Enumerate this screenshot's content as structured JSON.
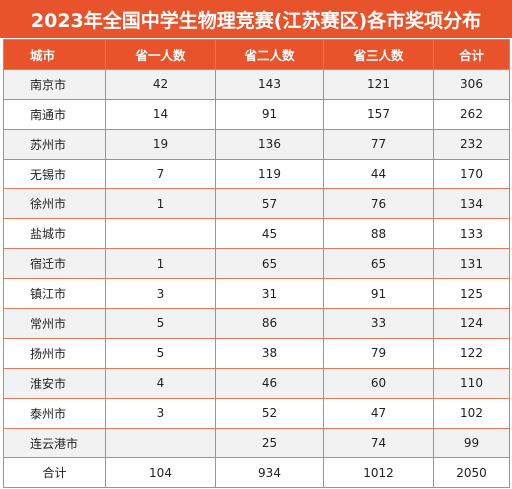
{
  "title": "2023年全国中学生物理竞赛(江苏赛区)各市奖项分布",
  "headers": [
    "城市",
    "省一人数",
    "省二人数",
    "省三人数",
    "合计"
  ],
  "rows": [
    [
      "南京市",
      "42",
      "143",
      "121",
      "306"
    ],
    [
      "南通市",
      "14",
      "91",
      "157",
      "262"
    ],
    [
      "苏州市",
      "19",
      "136",
      "77",
      "232"
    ],
    [
      "无锡市",
      "7",
      "119",
      "44",
      "170"
    ],
    [
      "徐州市",
      "1",
      "57",
      "76",
      "134"
    ],
    [
      "盐城市",
      "",
      "45",
      "88",
      "133"
    ],
    [
      "宿迁市",
      "1",
      "65",
      "65",
      "131"
    ],
    [
      "镇江市",
      "3",
      "31",
      "91",
      "125"
    ],
    [
      "常州市",
      "5",
      "86",
      "33",
      "124"
    ],
    [
      "扬州市",
      "5",
      "38",
      "79",
      "122"
    ],
    [
      "淮安市",
      "4",
      "46",
      "60",
      "110"
    ],
    [
      "泰州市",
      "3",
      "52",
      "47",
      "102"
    ],
    [
      "连云港市",
      "",
      "25",
      "74",
      "99"
    ]
  ],
  "total": [
    "合计",
    "104",
    "934",
    "1012",
    "2050"
  ],
  "colors": {
    "accent": "#e8532b",
    "border": "#e8785a",
    "stripe": "#f2f2f2"
  }
}
